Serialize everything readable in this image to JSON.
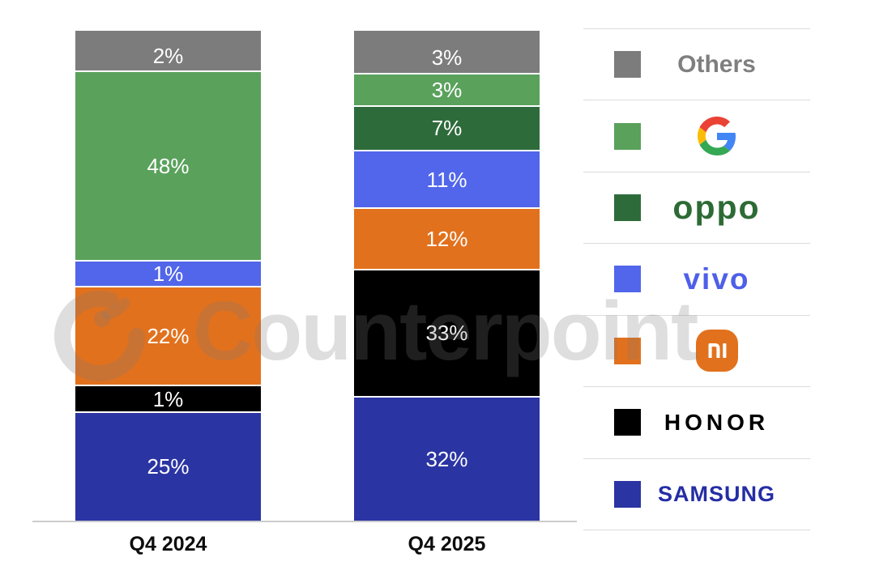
{
  "chart_data": {
    "type": "bar",
    "variant": "stacked-percent-column",
    "title": "",
    "xlabel": "",
    "ylabel": "",
    "grid": false,
    "legend_position": "right",
    "label_suffix": "%",
    "categories": [
      "Q4 2024",
      "Q4 2025"
    ],
    "series_top_to_bottom": [
      {
        "name": "Others",
        "color": "#7C7C7C",
        "values": [
          2,
          3
        ]
      },
      {
        "name": "Google",
        "color": "#5AA15C",
        "values": [
          48,
          3
        ]
      },
      {
        "name": "OPPO",
        "color": "#2E6B3B",
        "values": [
          0,
          7
        ]
      },
      {
        "name": "vivo",
        "color": "#5166EA",
        "values": [
          1,
          11
        ]
      },
      {
        "name": "Mi",
        "color": "#E2711D",
        "values": [
          22,
          12
        ]
      },
      {
        "name": "HONOR",
        "color": "#000000",
        "values": [
          1,
          33
        ]
      },
      {
        "name": "SAMSUNG",
        "color": "#2B34A3",
        "values": [
          25,
          32
        ]
      }
    ]
  },
  "x_axis": {
    "labels": [
      "Q4 2024",
      "Q4 2025"
    ]
  },
  "legend": {
    "items": [
      {
        "name": "Others",
        "swatch": "#7C7C7C",
        "logo_style": "others",
        "logo_color": "#7F7F7F",
        "text": "Others"
      },
      {
        "name": "Google",
        "swatch": "#5AA15C",
        "logo_style": "google",
        "logo_color": "#4285F4",
        "text": "G"
      },
      {
        "name": "OPPO",
        "swatch": "#2E6B3B",
        "logo_style": "oppo",
        "logo_color": "#2D6B35",
        "text": "oppo"
      },
      {
        "name": "vivo",
        "swatch": "#5166EA",
        "logo_style": "vivo",
        "logo_color": "#4E5FE8",
        "text": "vivo"
      },
      {
        "name": "Mi",
        "swatch": "#E2711D",
        "logo_style": "mi",
        "logo_color": "#E2711D",
        "text": "mi"
      },
      {
        "name": "HONOR",
        "swatch": "#000000",
        "logo_style": "honor",
        "logo_color": "#000000",
        "text": "HONOR"
      },
      {
        "name": "SAMSUNG",
        "swatch": "#2B34A3",
        "logo_style": "samsung",
        "logo_color": "#252DA5",
        "text": "SAMSUNG"
      }
    ]
  },
  "watermark": {
    "text": "Counterpoint"
  }
}
